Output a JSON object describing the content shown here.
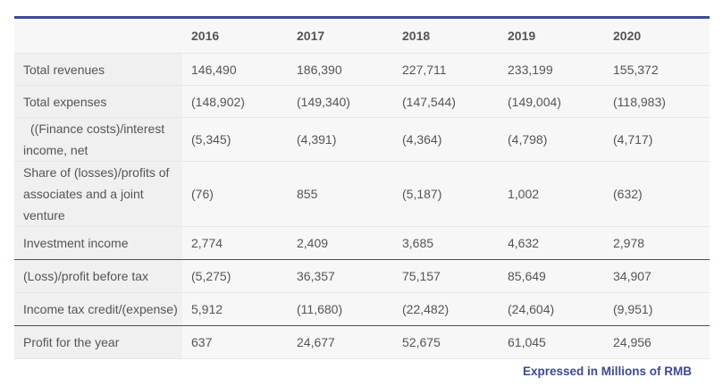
{
  "table": {
    "years": [
      "2016",
      "2017",
      "2018",
      "2019",
      "2020"
    ],
    "rows": [
      {
        "label": "Total revenues",
        "values": [
          "146,490",
          "186,390",
          "227,711",
          "233,199",
          "155,372"
        ]
      },
      {
        "label": "Total expenses",
        "values": [
          "(148,902)",
          "(149,340)",
          "(147,544)",
          "(149,004)",
          "(118,983)"
        ]
      },
      {
        "label": "((Finance costs)/interest income, net",
        "values": [
          "(5,345)",
          "(4,391)",
          "(4,364)",
          "(4,798)",
          "(4,717)"
        ]
      },
      {
        "label": "Share of (losses)/profits of associates and a joint venture",
        "values": [
          "(76)",
          "855",
          "(5,187)",
          "1,002",
          "(632)"
        ]
      },
      {
        "label": "Investment income",
        "values": [
          "2,774",
          "2,409",
          "3,685",
          "4,632",
          "2,978"
        ]
      },
      {
        "label": "(Loss)/profit before tax",
        "values": [
          "(5,275)",
          "36,357",
          "75,157",
          "85,649",
          "34,907"
        ]
      },
      {
        "label": "Income tax credit/(expense)",
        "values": [
          "5,912",
          "(11,680)",
          "(22,482)",
          "(24,604)",
          "(9,951)"
        ]
      },
      {
        "label": "Profit for the year",
        "values": [
          "637",
          "24,677",
          "52,675",
          "61,045",
          "24,956"
        ]
      }
    ]
  },
  "footnote": "Expressed in Millions of RMB",
  "colors": {
    "accent": "#3b4a9a",
    "label_bg": "#f0f0f1",
    "cell_bg": "#f7f7f8",
    "text": "#555555"
  }
}
